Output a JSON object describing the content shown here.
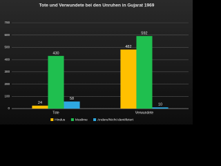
{
  "chart_data": {
    "type": "bar",
    "title": "Tote und Verwundete bei den Unruhen in Gujarat 1969",
    "categories": [
      "Tote",
      "Verwundete"
    ],
    "series": [
      {
        "name": "Hindus",
        "color": "#ffc000",
        "values": [
          24,
          482
        ]
      },
      {
        "name": "Muslime",
        "color": "#1fbf4f",
        "values": [
          430,
          592
        ]
      },
      {
        "name": "Andere/Nicht identifiziert",
        "color": "#2ea8e0",
        "values": [
          58,
          10
        ]
      }
    ],
    "ylim": [
      0,
      700
    ],
    "yticks": [
      0,
      100,
      200,
      300,
      400,
      500,
      600,
      700
    ],
    "grid": true,
    "legend": "bottom"
  }
}
